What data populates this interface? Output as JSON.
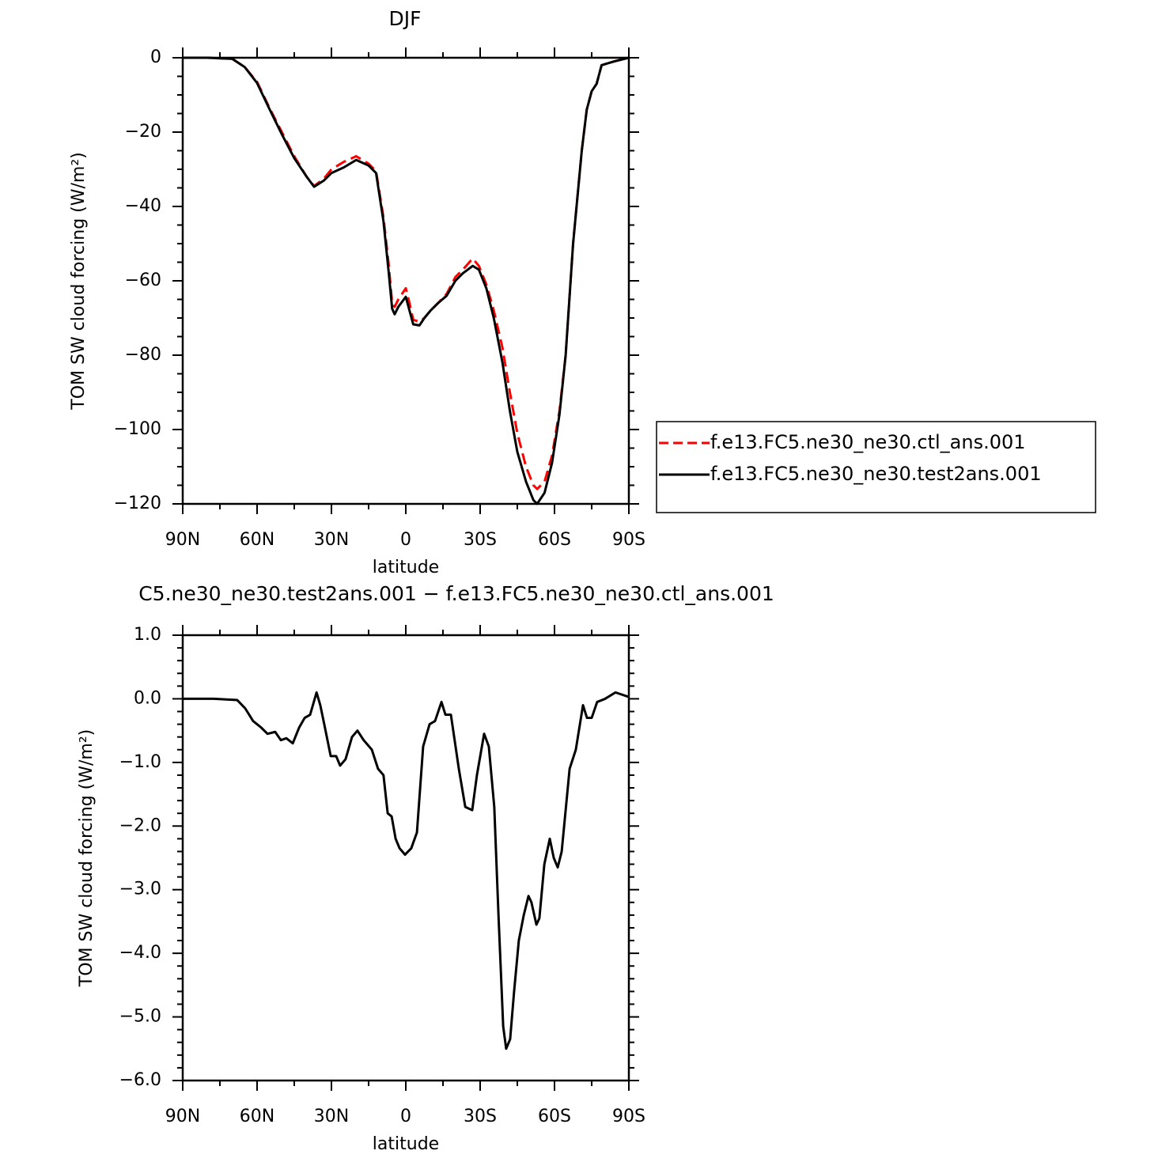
{
  "chart_data": [
    {
      "type": "line",
      "title": "DJF",
      "xlabel": "latitude",
      "ylabel": "TOM SW cloud forcing (W/m²)",
      "x": [
        90,
        80,
        70,
        65,
        60,
        55,
        50,
        45,
        40,
        37,
        33,
        30,
        25,
        20,
        15,
        12,
        9,
        7,
        5.5,
        4.5,
        3,
        0,
        -1.5,
        -3,
        -5.5,
        -7.5,
        -10,
        -13,
        -16.5,
        -20,
        -23,
        -27,
        -29.5,
        -32.5,
        -35.5,
        -39,
        -42,
        -45,
        -48.5,
        -51.5,
        -53,
        -56,
        -59,
        -62,
        -64.5,
        -67.5,
        -71,
        -73,
        -75,
        -77,
        -79,
        -84,
        -90
      ],
      "series": [
        {
          "name": "f.e13.FC5.ne30_ne30.ctl_ans.001",
          "color": "#ff0000",
          "dashed": true,
          "values": [
            0,
            0,
            -0.3,
            -2.5,
            -6.5,
            -13.5,
            -20,
            -26.5,
            -32,
            -34.5,
            -32.5,
            -30,
            -28,
            -26.5,
            -28.5,
            -30.5,
            -43,
            -55,
            -66,
            -67,
            -65,
            -62,
            -66,
            -70.5,
            -71,
            -70,
            -68,
            -66,
            -63.5,
            -59,
            -57,
            -54,
            -56,
            -61,
            -68,
            -78,
            -90,
            -101,
            -110,
            -115,
            -116,
            -114,
            -107,
            -95,
            -80,
            -50,
            -25,
            -14,
            -9,
            -7,
            -2,
            -1,
            0
          ]
        },
        {
          "name": "f.e13.FC5.ne30_ne30.test2ans.001",
          "color": "#000000",
          "dashed": false,
          "values": [
            0,
            0,
            -0.3,
            -2.5,
            -6.8,
            -13.8,
            -20.6,
            -27,
            -32,
            -34.7,
            -33,
            -31,
            -29.5,
            -27.5,
            -29,
            -31,
            -44,
            -57,
            -67.5,
            -69,
            -67,
            -64.3,
            -68,
            -71.7,
            -72,
            -70,
            -68,
            -66,
            -64,
            -60,
            -58,
            -56,
            -57,
            -62,
            -70,
            -82,
            -95,
            -106,
            -114,
            -119,
            -120,
            -117,
            -109,
            -96,
            -80,
            -50,
            -25,
            -14,
            -9,
            -7,
            -2,
            -1,
            0
          ]
        }
      ],
      "xlim": [
        90,
        -90
      ],
      "xticks": [
        {
          "value": 90,
          "label": "90N"
        },
        {
          "value": 60,
          "label": "60N"
        },
        {
          "value": 30,
          "label": "30N"
        },
        0,
        {
          "value": -30,
          "label": "30S"
        },
        {
          "value": -60,
          "label": "60S"
        },
        {
          "value": -90,
          "label": "90S"
        }
      ],
      "ylim": [
        -120,
        0
      ],
      "yticks": [
        {
          "value": -120,
          "label": "−120"
        },
        {
          "value": -100,
          "label": "−100"
        },
        {
          "value": -80,
          "label": "−80"
        },
        {
          "value": -60,
          "label": "−60"
        },
        {
          "value": -40,
          "label": "−40"
        },
        {
          "value": -20,
          "label": "−20"
        },
        0
      ],
      "legend": "right"
    },
    {
      "type": "line",
      "title": "C5.ne30_ne30.test2ans.001 − f.e13.FC5.ne30_ne30.ctl_ans.001",
      "xlabel": "latitude",
      "ylabel": "TOM SW cloud forcing (W/m²)",
      "x": [
        90,
        77.5,
        68,
        64.8,
        61.6,
        58.4,
        55.8,
        52.7,
        50.4,
        48.2,
        45.6,
        43,
        40.8,
        38.6,
        36,
        34.5,
        32.9,
        30.3,
        28.1,
        26.5,
        24.3,
        21.7,
        19.5,
        17,
        13.7,
        11.2,
        9,
        7.3,
        5.7,
        4.1,
        2.5,
        0.3,
        -2.2,
        -4.5,
        -7,
        -9.6,
        -11.8,
        -14.4,
        -16,
        -18.2,
        -21.4,
        -24,
        -26.8,
        -28.7,
        -31.6,
        -33.5,
        -35.7,
        -37.4,
        -39.3,
        -40.5,
        -42.1,
        -43.7,
        -45.6,
        -47.6,
        -49.5,
        -50.7,
        -52.7,
        -53.9,
        -55.9,
        -58.1,
        -59.7,
        -61.3,
        -62.9,
        -66.1,
        -68.6,
        -71.5,
        -73.1,
        -75,
        -77.2,
        -80.4,
        -84.6,
        -90
      ],
      "series": [
        {
          "color": "#000000",
          "dashed": false,
          "values": [
            0,
            0,
            -0.02,
            -0.15,
            -0.35,
            -0.45,
            -0.55,
            -0.52,
            -0.65,
            -0.62,
            -0.7,
            -0.45,
            -0.3,
            -0.25,
            0.1,
            -0.1,
            -0.4,
            -0.9,
            -0.9,
            -1.05,
            -0.95,
            -0.6,
            -0.5,
            -0.65,
            -0.8,
            -1.1,
            -1.2,
            -1.8,
            -1.85,
            -2.2,
            -2.35,
            -2.45,
            -2.35,
            -2.1,
            -0.75,
            -0.4,
            -0.35,
            -0.05,
            -0.25,
            -0.25,
            -1.1,
            -1.7,
            -1.75,
            -1.2,
            -0.55,
            -0.75,
            -1.7,
            -3.4,
            -5.15,
            -5.5,
            -5.35,
            -4.6,
            -3.8,
            -3.4,
            -3.1,
            -3.2,
            -3.55,
            -3.45,
            -2.6,
            -2.2,
            -2.5,
            -2.65,
            -2.4,
            -1.1,
            -0.8,
            -0.1,
            -0.3,
            -0.3,
            -0.05,
            0,
            0.1,
            0.03
          ]
        }
      ],
      "xlim": [
        90,
        -90
      ],
      "xticks": [
        {
          "value": 90,
          "label": "90N"
        },
        {
          "value": 60,
          "label": "60N"
        },
        {
          "value": 30,
          "label": "30N"
        },
        0,
        {
          "value": -30,
          "label": "30S"
        },
        {
          "value": -60,
          "label": "60S"
        },
        {
          "value": -90,
          "label": "90S"
        }
      ],
      "ylim": [
        -6,
        1
      ],
      "yticks": [
        {
          "value": -6,
          "label": "−6.0"
        },
        {
          "value": -5,
          "label": "−5.0"
        },
        {
          "value": -4,
          "label": "−4.0"
        },
        {
          "value": -3,
          "label": "−3.0"
        },
        {
          "value": -2,
          "label": "−2.0"
        },
        {
          "value": -1,
          "label": "−1.0"
        },
        {
          "value": 0,
          "label": "0.0"
        },
        {
          "value": 1,
          "label": "1.0"
        }
      ]
    }
  ]
}
